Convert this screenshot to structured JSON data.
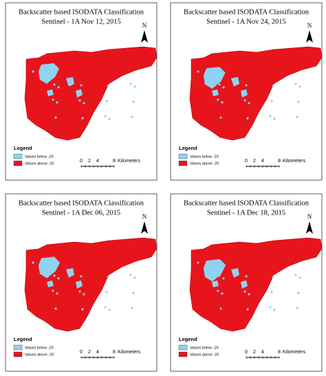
{
  "panels": [
    {
      "title": "Backscatter based ISODATA Classification",
      "subtitle": "Sentinel - 1A Nov 12, 2015"
    },
    {
      "title": "Backscatter based ISODATA Classification",
      "subtitle": "Sentinel - 1A Nov 24, 2015"
    },
    {
      "title": "Backscatter based ISODATA Classification",
      "subtitle": "Sentinel - 1A Dec 06, 2015"
    },
    {
      "title": "Backscatter based ISODATA Classification",
      "subtitle": "Sentinel - 1A Dec 18, 2015"
    }
  ],
  "north": "N",
  "legend": {
    "title": "Legend",
    "items": [
      {
        "name": "Values below -20",
        "color": "#8fd3f0"
      },
      {
        "name": "Values above -20",
        "color": "#e8141c"
      }
    ]
  },
  "scale": {
    "labels": [
      "0",
      "2",
      "4",
      "8"
    ],
    "unit": "Kilometers"
  }
}
